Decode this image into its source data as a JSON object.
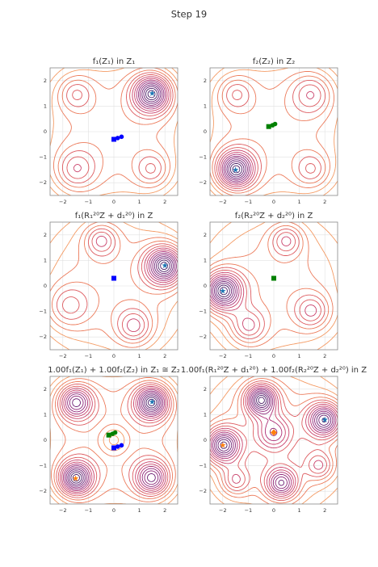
{
  "title": "Step 19",
  "chart_data": [
    {
      "type": "contour",
      "title": "f₁(Z₁) in Z₁",
      "xlim": [
        -2.5,
        2.5
      ],
      "ylim": [
        -2.5,
        2.5
      ],
      "xticks": [
        {
          "value": -2,
          "label": "−2"
        },
        {
          "value": -1,
          "label": "−1"
        },
        0,
        1,
        2
      ],
      "yticks": [
        {
          "value": -2,
          "label": "−2"
        },
        {
          "value": -1,
          "label": "−1"
        },
        0,
        1,
        2
      ],
      "grid": true,
      "series": [
        {
          "marker": "star",
          "color": "#1f77b4",
          "x": [
            1.5
          ],
          "y": [
            1.5
          ]
        },
        {
          "marker": "path",
          "color": "#0000ff",
          "x": [
            0.0,
            0.15,
            0.3
          ],
          "y": [
            -0.3,
            -0.25,
            -0.2
          ]
        }
      ]
    },
    {
      "type": "contour",
      "title": "f₂(Z₂) in Z₂",
      "xlim": [
        -2.5,
        2.5
      ],
      "ylim": [
        -2.5,
        2.5
      ],
      "xticks": [
        {
          "value": -2,
          "label": "−2"
        },
        {
          "value": -1,
          "label": "−1"
        },
        0,
        1,
        2
      ],
      "yticks": [
        {
          "value": -2,
          "label": "−2"
        },
        {
          "value": -1,
          "label": "−1"
        },
        0,
        1,
        2
      ],
      "grid": true,
      "series": [
        {
          "marker": "star",
          "color": "#1f77b4",
          "x": [
            -1.5
          ],
          "y": [
            -1.5
          ]
        },
        {
          "marker": "path",
          "color": "#008000",
          "x": [
            -0.2,
            -0.05,
            0.05
          ],
          "y": [
            0.2,
            0.25,
            0.3
          ]
        }
      ]
    },
    {
      "type": "contour",
      "title": "f₁(R₁²⁰Z + d₁²⁰) in Z",
      "xlim": [
        -2.5,
        2.5
      ],
      "ylim": [
        -2.5,
        2.5
      ],
      "xticks": [
        {
          "value": -2,
          "label": "−2"
        },
        {
          "value": -1,
          "label": "−1"
        },
        0,
        1,
        2
      ],
      "yticks": [
        {
          "value": -2,
          "label": "−2"
        },
        {
          "value": -1,
          "label": "−1"
        },
        0,
        1,
        2
      ],
      "grid": true,
      "series": [
        {
          "marker": "star",
          "color": "#1f77b4",
          "x": [
            2.0
          ],
          "y": [
            0.8
          ]
        },
        {
          "marker": "square",
          "color": "#0000ff",
          "x": [
            0.0
          ],
          "y": [
            0.3
          ]
        }
      ]
    },
    {
      "type": "contour",
      "title": "f₂(R₂²⁰Z + d₂²⁰) in Z",
      "xlim": [
        -2.5,
        2.5
      ],
      "ylim": [
        -2.5,
        2.5
      ],
      "xticks": [
        {
          "value": -2,
          "label": "−2"
        },
        {
          "value": -1,
          "label": "−1"
        },
        0,
        1,
        2
      ],
      "yticks": [
        {
          "value": -2,
          "label": "−2"
        },
        {
          "value": -1,
          "label": "−1"
        },
        0,
        1,
        2
      ],
      "grid": true,
      "series": [
        {
          "marker": "star",
          "color": "#1f77b4",
          "x": [
            -2.0
          ],
          "y": [
            -0.2
          ]
        },
        {
          "marker": "square",
          "color": "#008000",
          "x": [
            0.0
          ],
          "y": [
            0.3
          ]
        }
      ]
    },
    {
      "type": "contour",
      "title": "1.00f₁(Z₁) + 1.00f₂(Z₂) in Z₁ ≅ Z₂",
      "xlim": [
        -2.5,
        2.5
      ],
      "ylim": [
        -2.5,
        2.5
      ],
      "xticks": [
        {
          "value": -2,
          "label": "−2"
        },
        {
          "value": -1,
          "label": "−1"
        },
        0,
        1,
        2
      ],
      "yticks": [
        {
          "value": -2,
          "label": "−2"
        },
        {
          "value": -1,
          "label": "−1"
        },
        0,
        1,
        2
      ],
      "grid": true,
      "series": [
        {
          "marker": "star",
          "color": "#1f77b4",
          "x": [
            1.5
          ],
          "y": [
            1.5
          ]
        },
        {
          "marker": "star",
          "color": "#ff7f0e",
          "x": [
            -1.5
          ],
          "y": [
            -1.5
          ]
        },
        {
          "marker": "path",
          "color": "#0000ff",
          "x": [
            0.0,
            0.15,
            0.3
          ],
          "y": [
            -0.3,
            -0.25,
            -0.2
          ]
        },
        {
          "marker": "path",
          "color": "#008000",
          "x": [
            -0.2,
            -0.05,
            0.05
          ],
          "y": [
            0.2,
            0.25,
            0.3
          ]
        }
      ]
    },
    {
      "type": "contour",
      "title": "1.00f₁(R₁²⁰Z + d₁²⁰) + 1.00f₂(R₂²⁰Z + d₂²⁰) in Z",
      "xlim": [
        -2.5,
        2.5
      ],
      "ylim": [
        -2.5,
        2.5
      ],
      "xticks": [
        {
          "value": -2,
          "label": "−2"
        },
        {
          "value": -1,
          "label": "−1"
        },
        0,
        1,
        2
      ],
      "yticks": [
        {
          "value": -2,
          "label": "−2"
        },
        {
          "value": -1,
          "label": "−1"
        },
        0,
        1,
        2
      ],
      "grid": true,
      "series": [
        {
          "marker": "star",
          "color": "#1f77b4",
          "x": [
            2.0
          ],
          "y": [
            0.8
          ]
        },
        {
          "marker": "star",
          "color": "#ff7f0e",
          "x": [
            -2.0
          ],
          "y": [
            -0.2
          ]
        },
        {
          "marker": "diamond",
          "color": "#ff7f0e",
          "x": [
            0.0
          ],
          "y": [
            0.3
          ]
        }
      ]
    }
  ]
}
